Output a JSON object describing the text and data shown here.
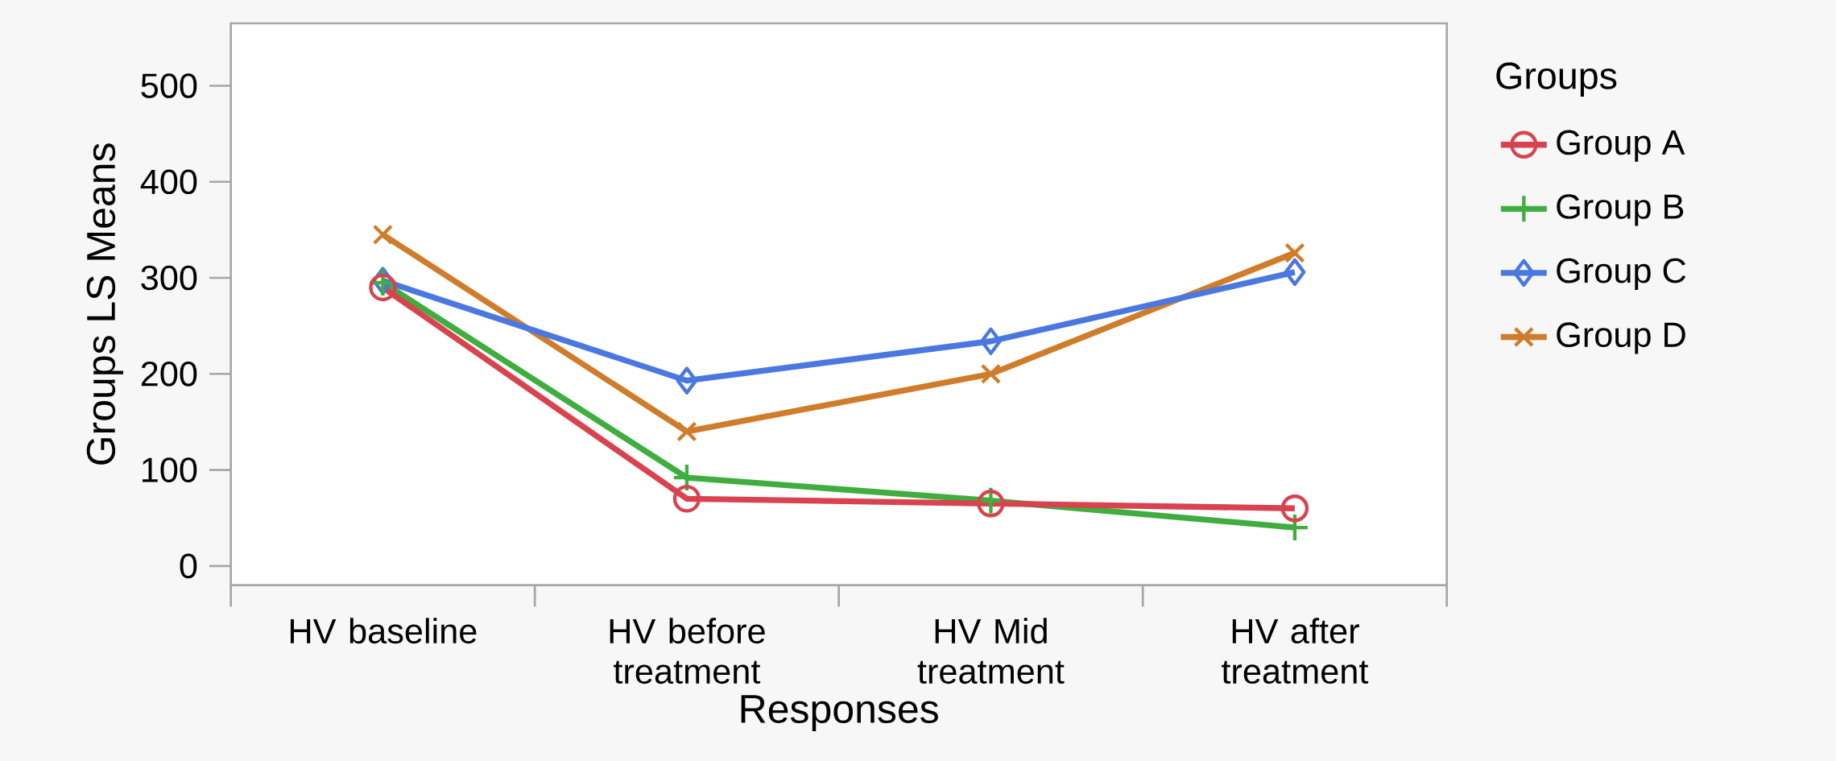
{
  "chart_data": {
    "type": "line",
    "xlabel": "Responses",
    "ylabel": "Groups  LS Means",
    "legend_title": "Groups",
    "categories": [
      "HV baseline",
      "HV before treatment",
      "HV Mid treatment",
      "HV after treatment"
    ],
    "series": [
      {
        "name": "Group A",
        "color": "#d8434f",
        "marker": "circle",
        "values": [
          290,
          70,
          65,
          60
        ]
      },
      {
        "name": "Group B",
        "color": "#3fae3f",
        "marker": "cross",
        "values": [
          295,
          92,
          68,
          40
        ]
      },
      {
        "name": "Group C",
        "color": "#4a78e0",
        "marker": "diamond",
        "values": [
          297,
          193,
          234,
          306
        ]
      },
      {
        "name": "Group D",
        "color": "#d07d2b",
        "marker": "x",
        "values": [
          345,
          140,
          200,
          326
        ]
      }
    ],
    "ylim": [
      -20,
      565
    ],
    "yticks": [
      0,
      100,
      200,
      300,
      400,
      500
    ],
    "legend": "right",
    "grid": false,
    "line_style": "solid"
  }
}
